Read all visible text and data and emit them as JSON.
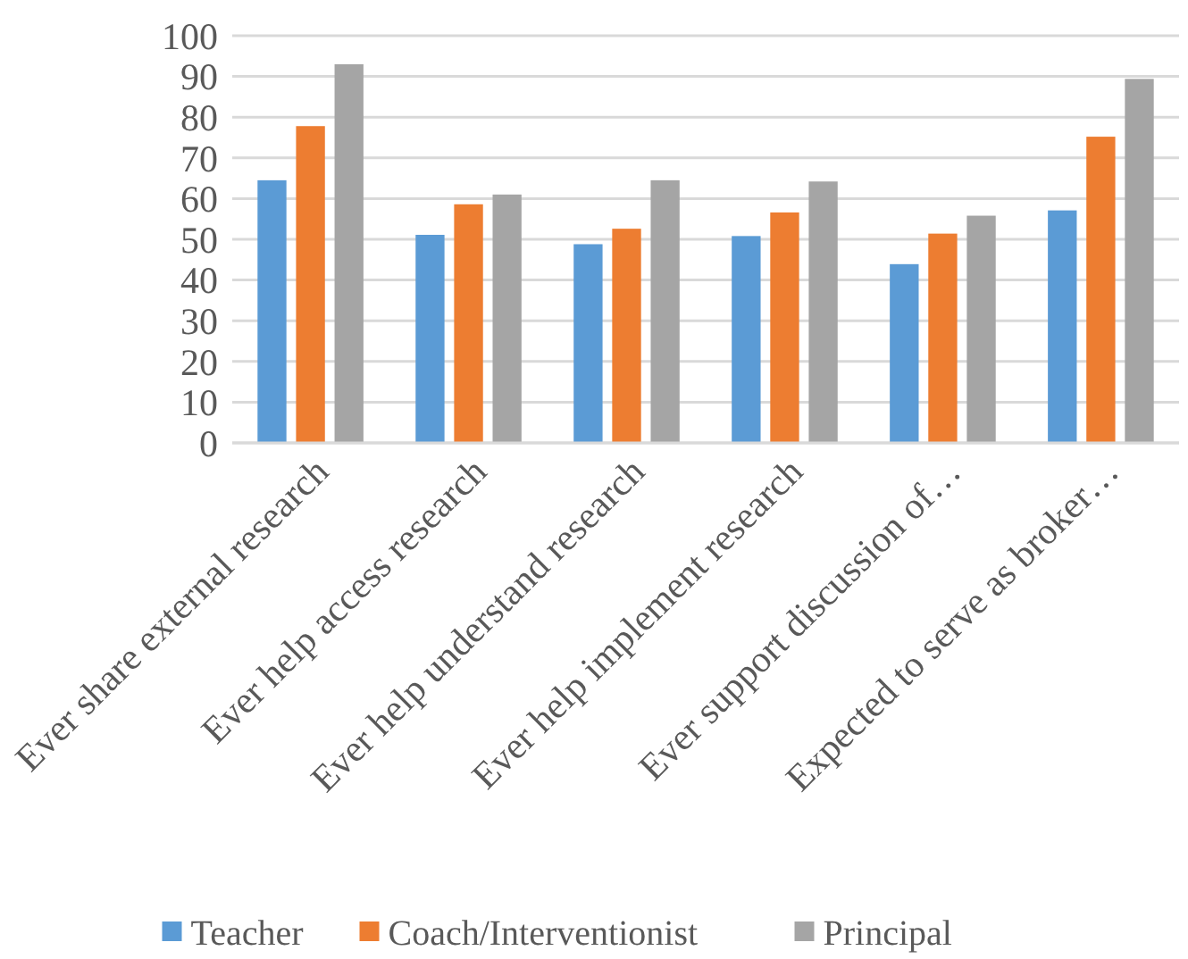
{
  "chart_data": {
    "type": "bar",
    "categories": [
      "Ever share external research",
      "Ever help access research",
      "Ever help understand research",
      "Ever help implement research",
      "Ever support discussion of…",
      "Expected to serve as broker…"
    ],
    "series": [
      {
        "name": "Teacher",
        "color": "#5b9bd5",
        "values": [
          64.5,
          51.1,
          48.8,
          50.8,
          43.9,
          57.1
        ]
      },
      {
        "name": "Coach/Interventionist",
        "color": "#ed7d31",
        "values": [
          77.8,
          58.6,
          52.6,
          56.6,
          51.4,
          75.2
        ]
      },
      {
        "name": "Principal",
        "color": "#a5a5a5",
        "values": [
          93,
          61,
          64.5,
          64.2,
          55.8,
          89.4
        ]
      }
    ],
    "ylim": [
      0,
      100
    ],
    "yticks": [
      0,
      10,
      20,
      30,
      40,
      50,
      60,
      70,
      80,
      90,
      100
    ],
    "grid": "y",
    "legend": "bottom"
  }
}
